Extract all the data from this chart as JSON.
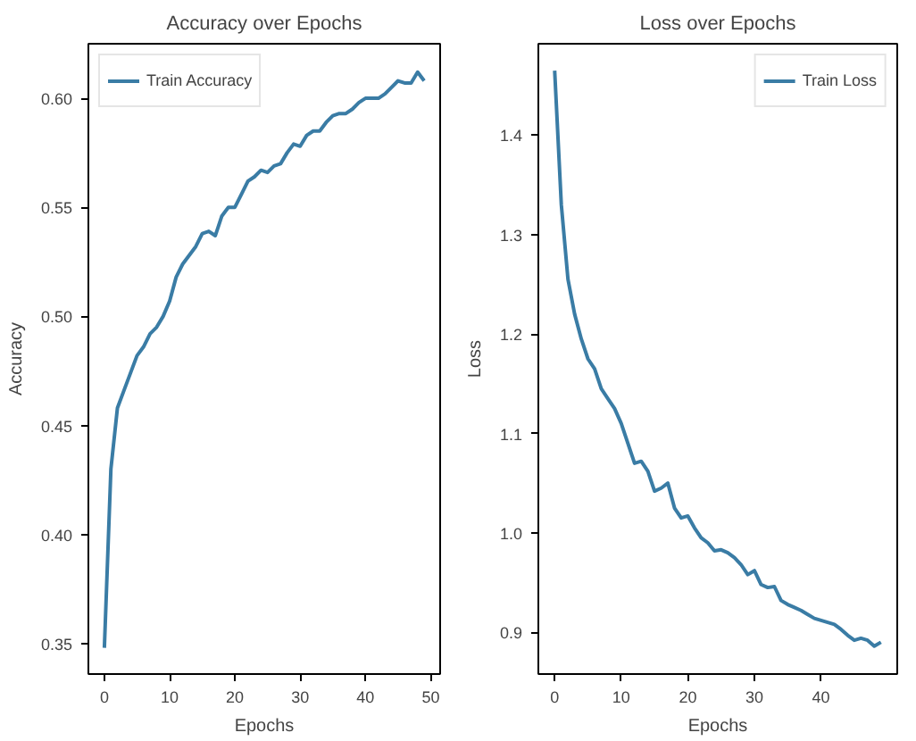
{
  "chart_data": [
    {
      "type": "line",
      "title": "Accuracy over Epochs",
      "xlabel": "Epochs",
      "ylabel": "Accuracy",
      "x": [
        0,
        1,
        2,
        3,
        4,
        5,
        6,
        7,
        8,
        9,
        10,
        11,
        12,
        13,
        14,
        15,
        16,
        17,
        18,
        19,
        20,
        21,
        22,
        23,
        24,
        25,
        26,
        27,
        28,
        29,
        30,
        31,
        32,
        33,
        34,
        35,
        36,
        37,
        38,
        39,
        40,
        41,
        42,
        43,
        44,
        45,
        46,
        47,
        48,
        49
      ],
      "series": [
        {
          "name": "Train Accuracy",
          "color": "#3a7ca5",
          "values": [
            0.348,
            0.43,
            0.458,
            0.466,
            0.474,
            0.482,
            0.486,
            0.492,
            0.495,
            0.5,
            0.507,
            0.518,
            0.524,
            0.528,
            0.532,
            0.538,
            0.539,
            0.537,
            0.546,
            0.55,
            0.55,
            0.556,
            0.562,
            0.564,
            0.567,
            0.566,
            0.569,
            0.57,
            0.575,
            0.579,
            0.578,
            0.583,
            0.585,
            0.585,
            0.589,
            0.592,
            0.593,
            0.593,
            0.595,
            0.598,
            0.6,
            0.6,
            0.6,
            0.602,
            0.605,
            0.608,
            0.607,
            0.607,
            0.612,
            0.608
          ]
        }
      ],
      "xlim": [
        -2.45,
        51.45
      ],
      "ylim": [
        0.336,
        0.625
      ],
      "xticks": [
        0,
        10,
        20,
        30,
        40,
        50
      ],
      "yticks": [
        0.35,
        {
          "value": 0.4,
          "label": "0.40"
        },
        0.45,
        {
          "value": 0.5,
          "label": "0.50"
        },
        0.55,
        {
          "value": 0.6,
          "label": "0.60"
        }
      ],
      "legend": "top left",
      "grid": false
    },
    {
      "type": "line",
      "title": "Loss over Epochs",
      "xlabel": "Epochs",
      "ylabel": "Loss",
      "x": [
        0,
        1,
        2,
        3,
        4,
        5,
        6,
        7,
        8,
        9,
        10,
        11,
        12,
        13,
        14,
        15,
        16,
        17,
        18,
        19,
        20,
        21,
        22,
        23,
        24,
        25,
        26,
        27,
        28,
        29,
        30,
        31,
        32,
        33,
        34,
        35,
        36,
        37,
        38,
        39,
        40,
        41,
        42,
        43,
        44,
        45,
        46,
        47,
        48,
        49
      ],
      "series": [
        {
          "name": "Train Loss",
          "color": "#3a7ca5",
          "values": [
            1.465,
            1.33,
            1.255,
            1.22,
            1.195,
            1.175,
            1.165,
            1.145,
            1.135,
            1.125,
            1.11,
            1.09,
            1.07,
            1.072,
            1.062,
            1.042,
            1.045,
            1.05,
            1.025,
            1.015,
            1.017,
            1.005,
            0.995,
            0.99,
            0.982,
            0.983,
            0.98,
            0.975,
            0.968,
            0.958,
            0.962,
            0.948,
            0.945,
            0.946,
            0.932,
            0.928,
            0.925,
            0.922,
            0.918,
            0.914,
            0.912,
            0.91,
            0.908,
            0.903,
            0.897,
            0.892,
            0.894,
            0.892,
            0.886,
            0.89
          ]
        }
      ],
      "xlim": [
        -2.45,
        51.45
      ],
      "ylim": [
        0.858,
        1.492
      ],
      "xticks": [
        0,
        10,
        20,
        30,
        40
      ],
      "yticks": [
        0.9,
        {
          "value": 1,
          "label": "1.0"
        },
        1.1,
        1.2,
        1.3,
        1.4
      ],
      "legend": "top right",
      "grid": false
    }
  ]
}
